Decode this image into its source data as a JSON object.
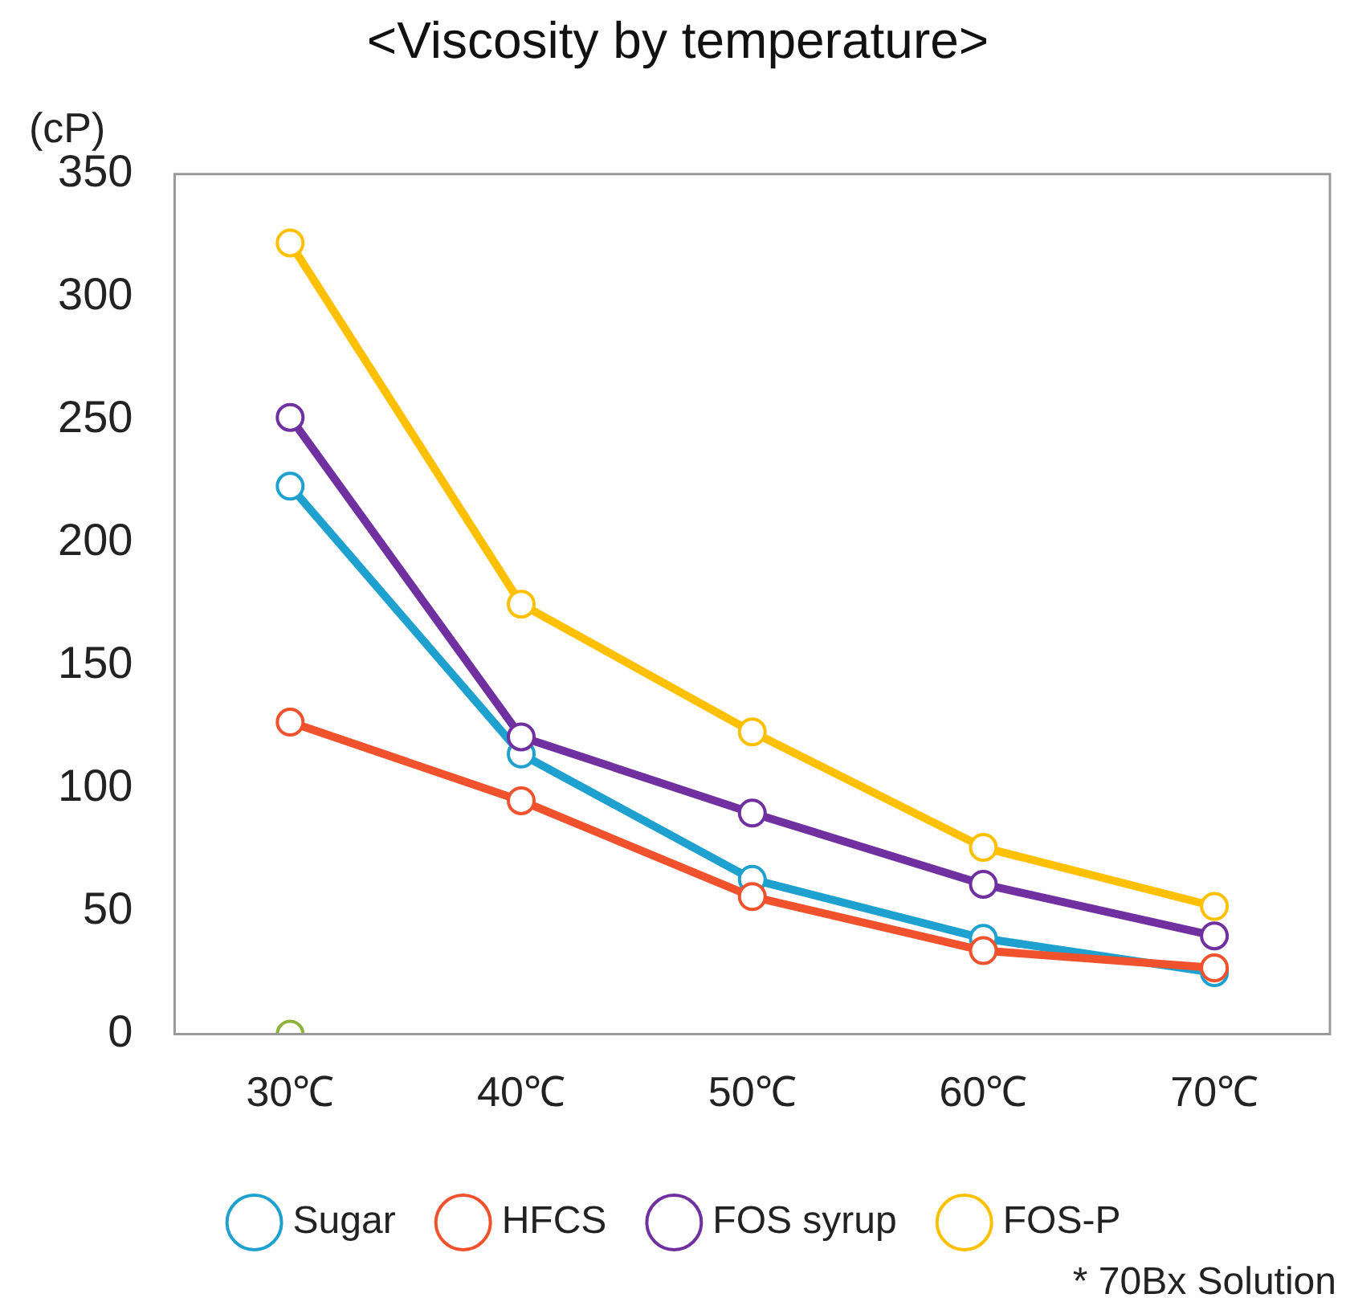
{
  "chart_data": {
    "type": "line",
    "title": "<Viscosity by temperature>",
    "ylabel": "(cP)",
    "categories": [
      "30℃",
      "40℃",
      "50℃",
      "60℃",
      "70℃"
    ],
    "series": [
      {
        "name": "Sugar",
        "color": "#1fa1cf",
        "values": [
          223,
          114,
          63,
          39,
          25
        ]
      },
      {
        "name": "HFCS",
        "color": "#f0522d",
        "values": [
          127,
          95,
          56,
          34,
          27
        ]
      },
      {
        "name": "FOS syrup",
        "color": "#7030a0",
        "values": [
          251,
          121,
          90,
          61,
          40
        ]
      },
      {
        "name": "FOS-P",
        "color": "#ffc000",
        "values": [
          322,
          175,
          123,
          76,
          52
        ]
      },
      {
        "type": "scatter",
        "color": "#8db33a",
        "values": [
          0,
          null,
          null,
          null,
          null
        ]
      }
    ],
    "ylim": [
      0,
      350
    ],
    "yticks": [
      0,
      50,
      100,
      150,
      200,
      250,
      300,
      350
    ],
    "grid": false,
    "legend": "bottom",
    "marker": "circle",
    "line_style": "solid",
    "annotations": [
      "* 70Bx Solution"
    ]
  }
}
